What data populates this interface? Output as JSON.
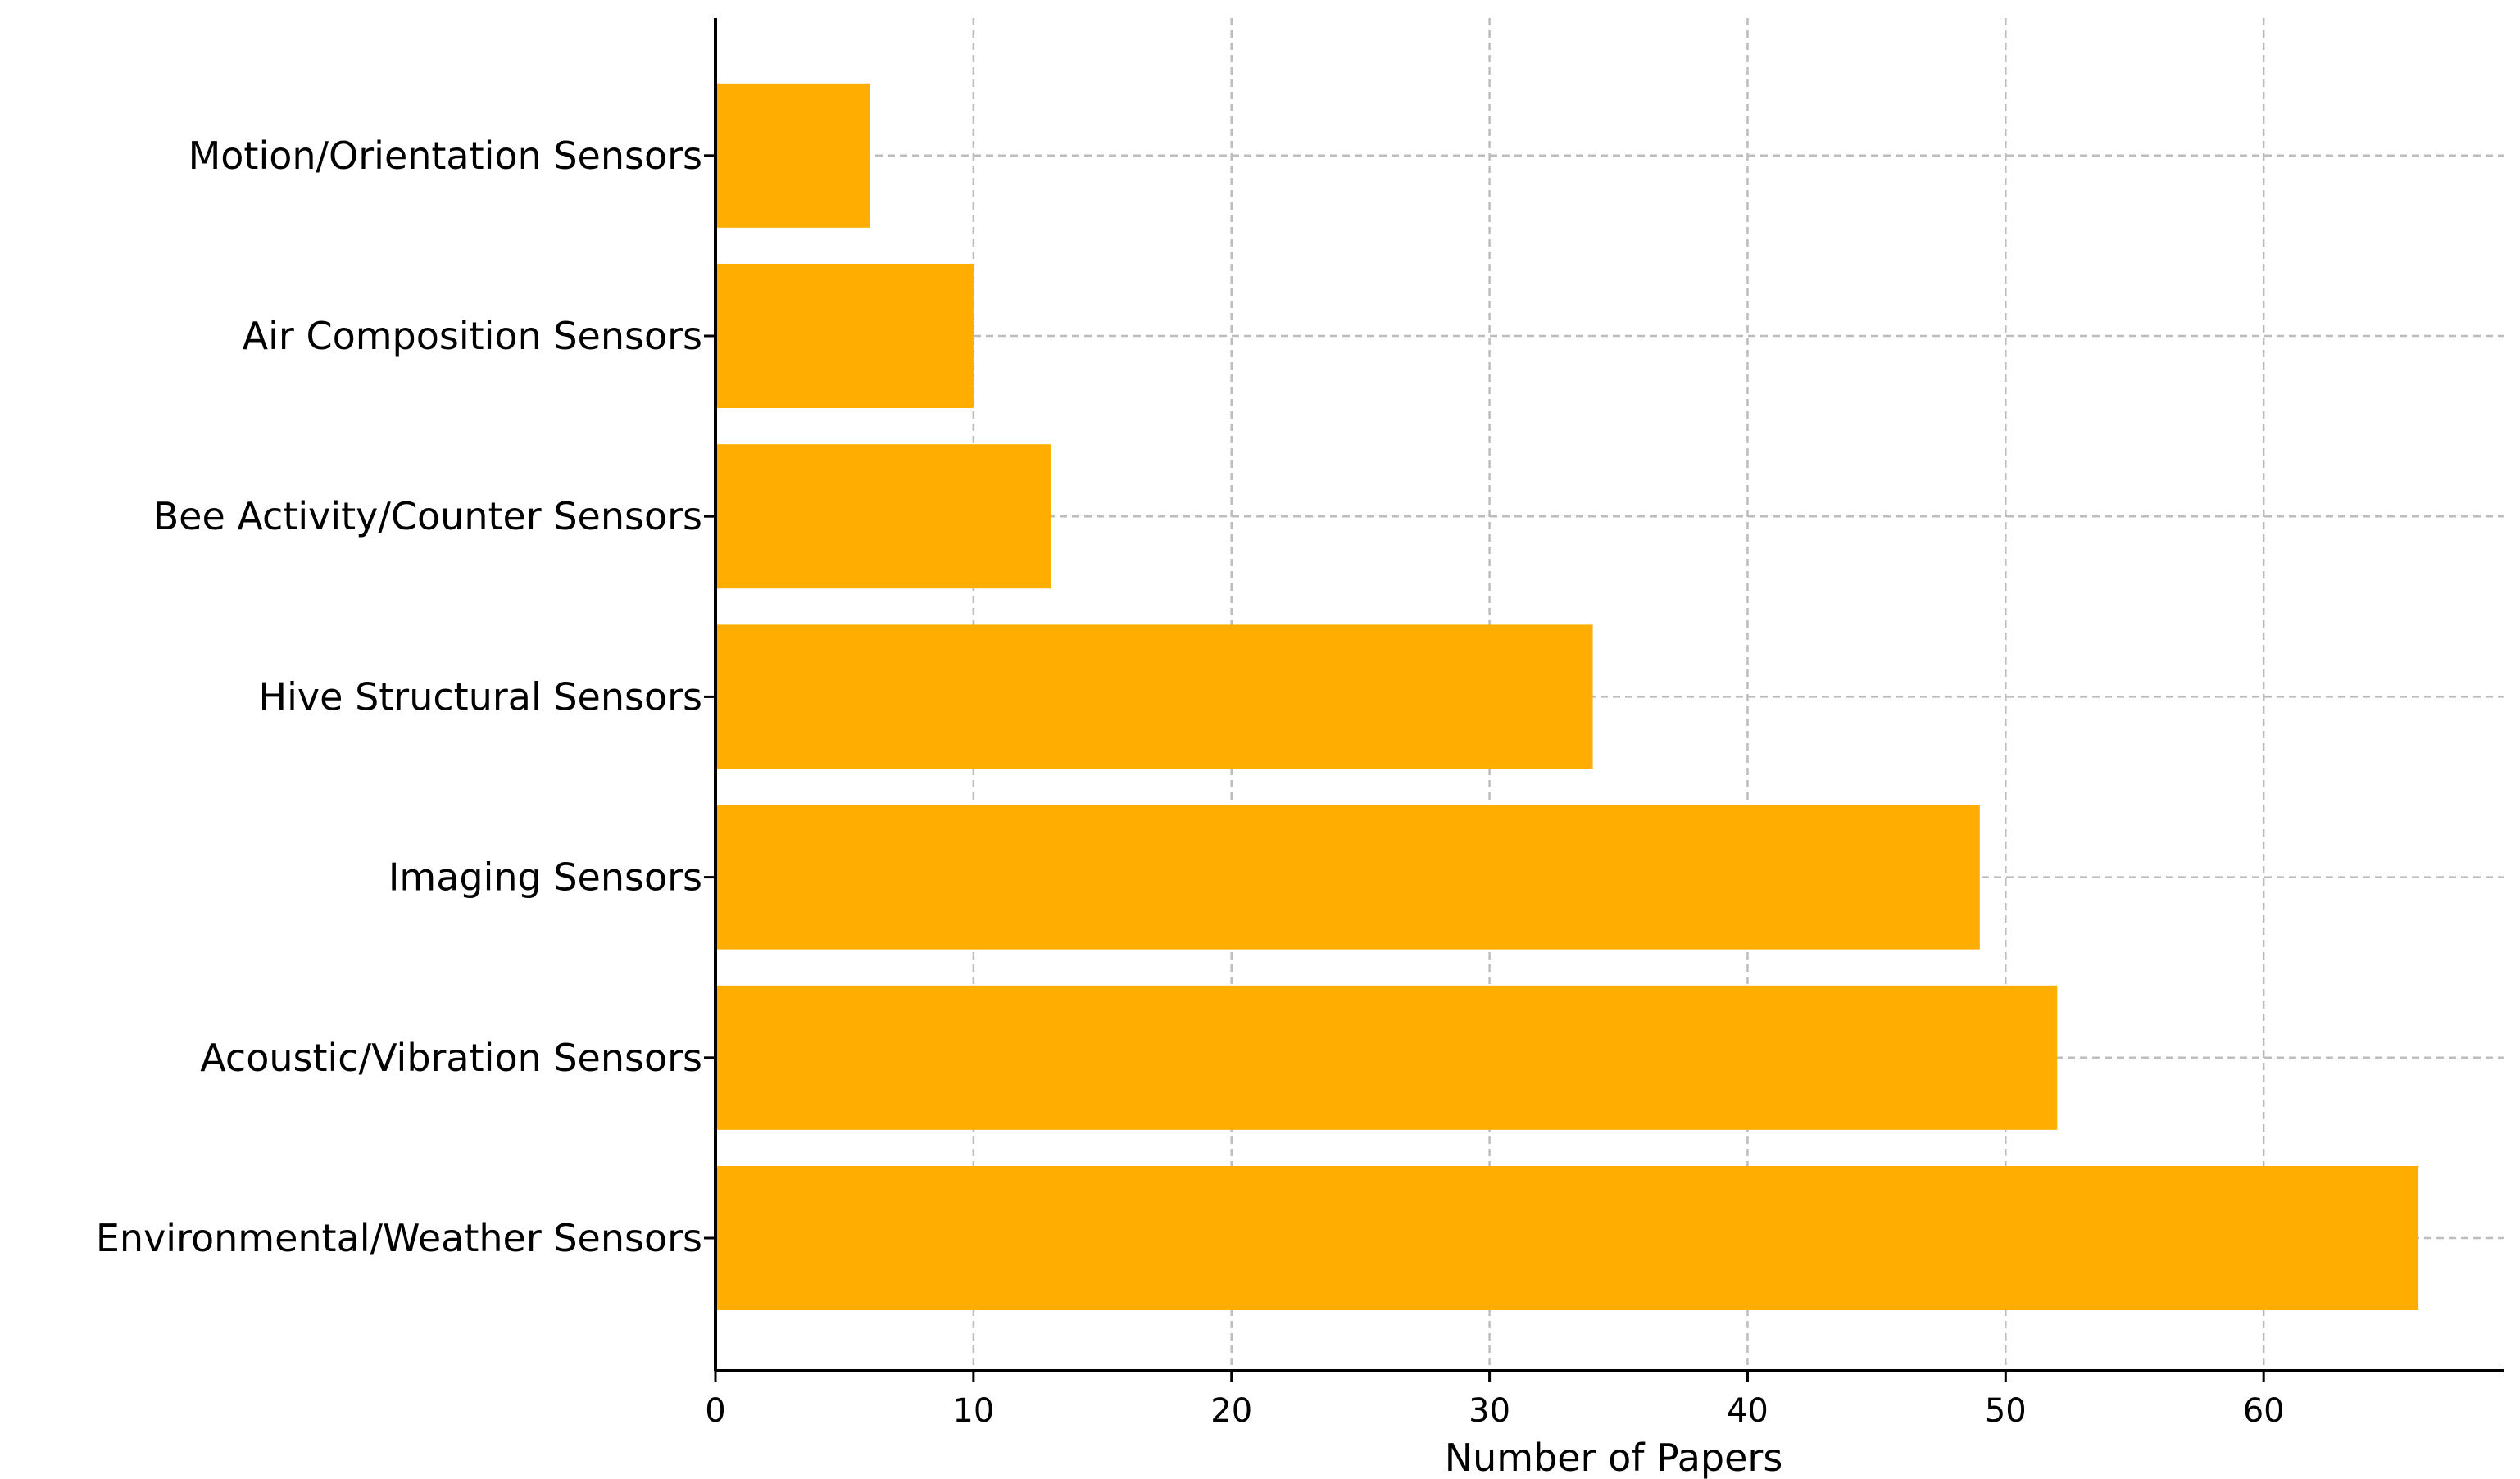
{
  "chart_data": {
    "type": "bar",
    "orientation": "horizontal",
    "categories": [
      "Environmental/Weather Sensors",
      "Acoustic/Vibration Sensors",
      "Imaging Sensors",
      "Hive Structural Sensors",
      "Bee Activity/Counter Sensors",
      "Air Composition Sensors",
      "Motion/Orientation Sensors"
    ],
    "values": [
      66,
      52,
      49,
      34,
      13,
      10,
      6
    ],
    "xlabel": "Number of Papers",
    "ylabel": "",
    "title": "",
    "xlim": [
      0,
      69.3
    ],
    "xticks": [
      0,
      10,
      20,
      30,
      40,
      50,
      60
    ],
    "grid": true,
    "bar_color": "#ffad00",
    "grid_color": "#bdbdbd"
  }
}
